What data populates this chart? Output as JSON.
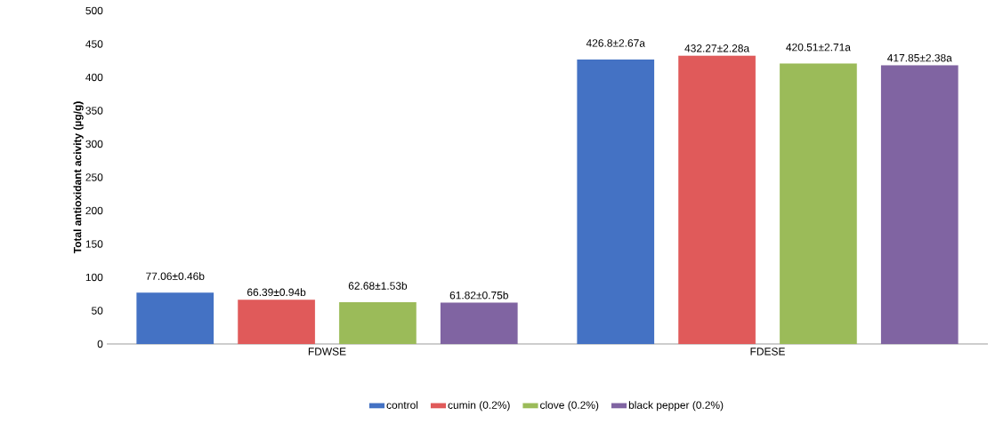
{
  "chart_data": {
    "type": "bar",
    "ylabel": "Total antioxidant acivity (µg/g)",
    "categories": [
      "FDWSE",
      "FDESE"
    ],
    "ylim": [
      0,
      500
    ],
    "yticks": [
      0,
      50,
      100,
      150,
      200,
      250,
      300,
      350,
      400,
      450,
      500
    ],
    "grid": false,
    "legend": "bottom",
    "series": [
      {
        "name": "control",
        "color": "#4472c4",
        "values": [
          77.06,
          426.8
        ],
        "value_labels": [
          "77.06±0.46b",
          "426.8±2.67a"
        ]
      },
      {
        "name": "cumin (0.2%)",
        "color": "#e05a5a",
        "values": [
          66.39,
          432.27
        ],
        "value_labels": [
          "66.39±0.94b",
          "432.27±2.28a"
        ]
      },
      {
        "name": "clove (0.2%)",
        "color": "#9bbb59",
        "values": [
          62.68,
          420.51
        ],
        "value_labels": [
          "62.68±1.53b",
          "420.51±2.71a"
        ]
      },
      {
        "name": "black pepper (0.2%)",
        "color": "#8064a2",
        "values": [
          61.82,
          417.85
        ],
        "value_labels": [
          "61.82±0.75b",
          "417.85±2.38a"
        ]
      }
    ]
  }
}
